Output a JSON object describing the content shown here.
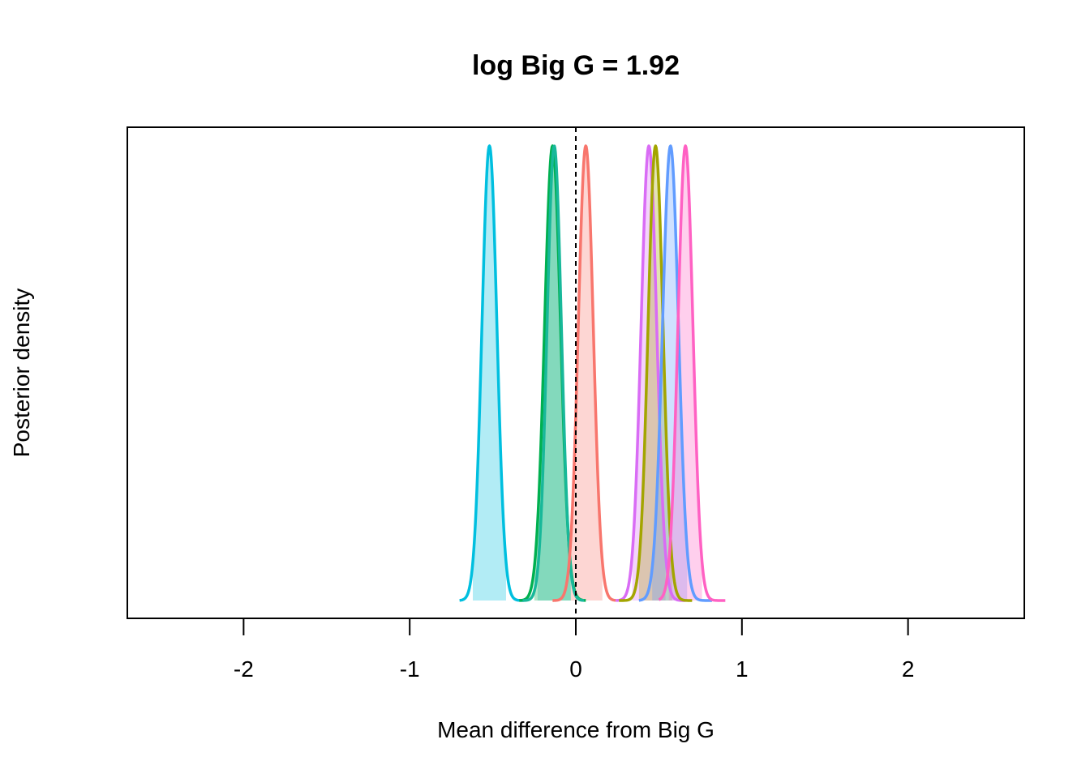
{
  "chart_data": {
    "type": "area",
    "title": "log Big G = 1.92",
    "xlabel": "Mean difference from Big G",
    "ylabel": "Posterior density",
    "xlim": [
      -2.7,
      2.7
    ],
    "ylim": [
      0,
      1.0
    ],
    "x_ticks": [
      -2,
      -1,
      0,
      1,
      2
    ],
    "x_tick_labels": [
      "-2",
      "-1",
      "0",
      "1",
      "2"
    ],
    "y_ticks_shown": false,
    "grid": false,
    "reference_line": {
      "x": 0,
      "style": "dashed"
    },
    "series": [
      {
        "mean": -0.52,
        "sd": 0.045,
        "hpd": [
          -0.62,
          -0.42
        ],
        "range": [
          -0.7,
          -0.32
        ],
        "color": "#00bfdf"
      },
      {
        "mean": -0.14,
        "sd": 0.048,
        "hpd": [
          -0.25,
          -0.03
        ],
        "range": [
          -0.34,
          0.06
        ],
        "color": "#00b050"
      },
      {
        "mean": -0.13,
        "sd": 0.043,
        "hpd": [
          -0.23,
          -0.03
        ],
        "range": [
          -0.32,
          0.05
        ],
        "color": "#18b89a"
      },
      {
        "mean": 0.06,
        "sd": 0.045,
        "hpd": [
          -0.03,
          0.16
        ],
        "range": [
          -0.14,
          0.24
        ],
        "color": "#f8766d"
      },
      {
        "mean": 0.44,
        "sd": 0.047,
        "hpd": [
          0.34,
          0.54
        ],
        "range": [
          0.24,
          0.66
        ],
        "color": "#d96cf5"
      },
      {
        "mean": 0.48,
        "sd": 0.045,
        "hpd": [
          0.38,
          0.58
        ],
        "range": [
          0.26,
          0.7
        ],
        "color": "#a3a500"
      },
      {
        "mean": 0.57,
        "sd": 0.048,
        "hpd": [
          0.46,
          0.67
        ],
        "range": [
          0.38,
          0.82
        ],
        "color": "#619cff"
      },
      {
        "mean": 0.66,
        "sd": 0.045,
        "hpd": [
          0.56,
          0.76
        ],
        "range": [
          0.5,
          0.9
        ],
        "color": "#ff61c3"
      }
    ]
  }
}
